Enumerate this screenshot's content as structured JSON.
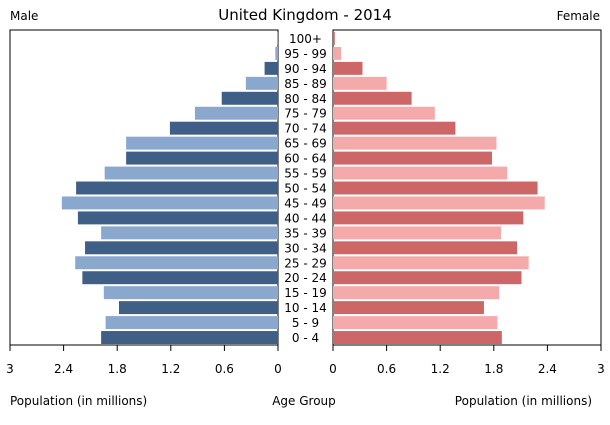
{
  "title": "United Kingdom - 2014",
  "chart_data": {
    "type": "bar",
    "title": "United Kingdom - 2014",
    "left_label": "Male",
    "right_label": "Female",
    "xlabel_left": "Population (in millions)",
    "xlabel_center": "Age Group",
    "xlabel_right": "Population (in millions)",
    "xlim": [
      0,
      3
    ],
    "xticks_left": [
      "3",
      "2.4",
      "1.8",
      "1.2",
      "0.6",
      "0"
    ],
    "xticks_right": [
      "0",
      "0.6",
      "1.2",
      "1.8",
      "2.4",
      "3"
    ],
    "categories": [
      "0 - 4",
      "5 - 9",
      "10 - 14",
      "15 - 19",
      "20 - 24",
      "25 - 29",
      "30 - 34",
      "35 - 39",
      "40 - 44",
      "45 - 49",
      "50 - 54",
      "55 - 59",
      "60 - 64",
      "65 - 69",
      "70 - 74",
      "75 - 79",
      "80 - 84",
      "85 - 89",
      "90 - 94",
      "95 - 99",
      "100+"
    ],
    "series": [
      {
        "name": "Male",
        "values": [
          1.98,
          1.93,
          1.78,
          1.95,
          2.19,
          2.27,
          2.16,
          1.98,
          2.24,
          2.42,
          2.26,
          1.94,
          1.7,
          1.7,
          1.21,
          0.93,
          0.63,
          0.36,
          0.15,
          0.03,
          0.005
        ],
        "colors": [
          "#3f5f87",
          "#8aa8cd"
        ]
      },
      {
        "name": "Female",
        "values": [
          1.89,
          1.84,
          1.69,
          1.86,
          2.11,
          2.19,
          2.06,
          1.88,
          2.13,
          2.37,
          2.29,
          1.95,
          1.78,
          1.83,
          1.37,
          1.14,
          0.88,
          0.6,
          0.33,
          0.09,
          0.02
        ],
        "colors": [
          "#cd6666",
          "#f4aaaa"
        ]
      }
    ]
  }
}
